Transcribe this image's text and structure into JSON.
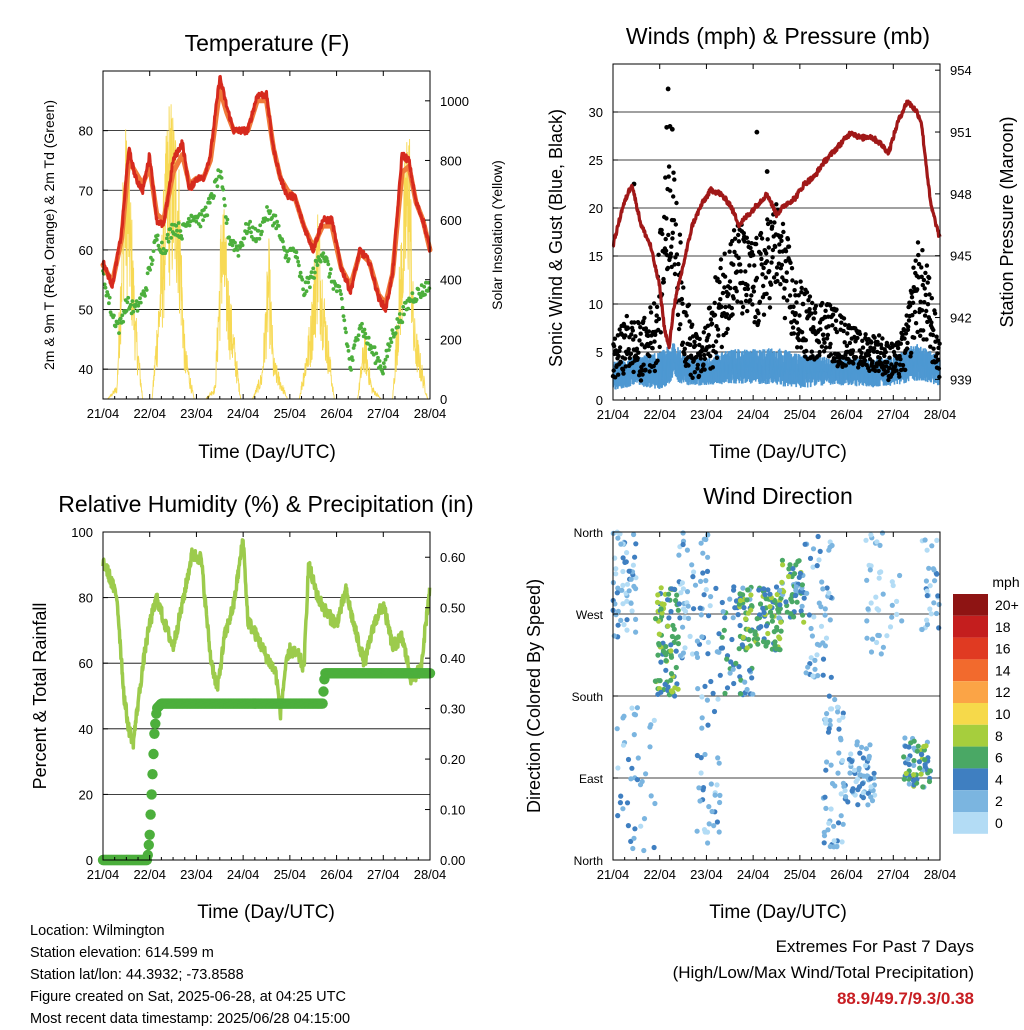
{
  "x_ticks": [
    "21/04",
    "22/04",
    "23/04",
    "24/04",
    "25/04",
    "26/04",
    "27/04",
    "28/04"
  ],
  "info": {
    "location": "Location: Wilmington",
    "elevation": "Station elevation: 614.599 m",
    "latlon": "Station lat/lon: 44.3932; -73.8588",
    "created": "Figure created on Sat, 2025-06-28, at 04:25 UTC",
    "recent": "Most recent data timestamp: 2025/06/28 04:15:00"
  },
  "extremes": {
    "title": "Extremes For Past 7 Days",
    "subtitle": "(High/Low/Max Wind/Total Precipitation)",
    "values": "88.9/49.7/9.3/0.38",
    "value_color": "#c81e23"
  },
  "colors": {
    "temp_2m": "#d62a1e",
    "temp_9m": "#f07a3a",
    "dewpoint": "#4caf3c",
    "insolation": "#f7d954",
    "gust": "#000000",
    "wind": "#4e98d2",
    "pressure": "#a01818",
    "rh": "#9ccb4c",
    "precip": "#4caf3c"
  },
  "chart_data": [
    {
      "type": "line",
      "title": "Temperature (F)",
      "xlabel": "Time (Day/UTC)",
      "ylabel": "2m & 9m T (Red, Orange) & 2m Td (Green)",
      "y2label": "Solar Insolation (Yellow)",
      "ylim": [
        35,
        90
      ],
      "y2lim": [
        0,
        1100
      ],
      "yticks": [
        40,
        50,
        60,
        70,
        80
      ],
      "y2ticks": [
        0,
        200,
        400,
        600,
        800,
        1000
      ],
      "x_days": [
        0,
        7
      ],
      "grid": true,
      "series": [
        {
          "key": "temp_2m",
          "x": [
            0,
            0.2,
            0.4,
            0.55,
            0.7,
            0.85,
            1.0,
            1.15,
            1.3,
            1.5,
            1.7,
            1.85,
            2.0,
            2.15,
            2.3,
            2.5,
            2.65,
            2.8,
            2.95,
            3.1,
            3.3,
            3.5,
            3.65,
            3.8,
            3.95,
            4.1,
            4.3,
            4.5,
            4.7,
            4.9,
            5.1,
            5.3,
            5.5,
            5.7,
            5.9,
            6.05,
            6.2,
            6.4,
            6.55,
            6.7,
            6.85,
            7.0
          ],
          "y": [
            58,
            54,
            63,
            77,
            72,
            70,
            76,
            65,
            64,
            75,
            78,
            70,
            72,
            72,
            76,
            89,
            84,
            80,
            80,
            80,
            86,
            86,
            77,
            72,
            69,
            69,
            64,
            60,
            65,
            65,
            57,
            53,
            60,
            58,
            52,
            50,
            56,
            76,
            75,
            68,
            65,
            60
          ]
        },
        {
          "key": "temp_9m",
          "x": [
            0,
            0.2,
            0.4,
            0.55,
            0.7,
            0.85,
            1.0,
            1.15,
            1.3,
            1.5,
            1.7,
            1.85,
            2.0,
            2.15,
            2.3,
            2.5,
            2.65,
            2.8,
            2.95,
            3.1,
            3.3,
            3.5,
            3.65,
            3.8,
            3.95,
            4.1,
            4.3,
            4.5,
            4.7,
            4.9,
            5.1,
            5.3,
            5.5,
            5.7,
            5.9,
            6.05,
            6.2,
            6.4,
            6.55,
            6.7,
            6.85,
            7.0
          ],
          "y": [
            57.5,
            54.5,
            62,
            75,
            73,
            71,
            74,
            66,
            65,
            73,
            76,
            71,
            72,
            72,
            75,
            87,
            83,
            80,
            80,
            80,
            85,
            85,
            77,
            72,
            70,
            69,
            64,
            60.5,
            64,
            64,
            57,
            54,
            59.5,
            58,
            52.5,
            51,
            56,
            73,
            74,
            68,
            65,
            60
          ]
        },
        {
          "key": "dewpoint",
          "x": [
            0,
            0.2,
            0.35,
            0.5,
            0.7,
            0.9,
            1.0,
            1.15,
            1.3,
            1.5,
            1.7,
            1.9,
            2.1,
            2.3,
            2.5,
            2.7,
            2.9,
            3.1,
            3.3,
            3.5,
            3.7,
            3.9,
            4.1,
            4.3,
            4.5,
            4.7,
            4.9,
            5.1,
            5.3,
            5.5,
            5.7,
            5.85,
            6.0,
            6.2,
            6.4,
            6.6,
            6.8,
            7.0
          ],
          "y": [
            56,
            49,
            47,
            51,
            50,
            53,
            57,
            62,
            60,
            64,
            63,
            66,
            65,
            68,
            73,
            62,
            60,
            64,
            62,
            66,
            65,
            59,
            60,
            53,
            56,
            60,
            55,
            52,
            40,
            48,
            44,
            42,
            40,
            46,
            49,
            52,
            53,
            54
          ]
        },
        {
          "key": "insolation",
          "x": [
            0,
            0.1,
            0.3,
            0.45,
            0.55,
            0.7,
            0.85,
            1.05,
            1.2,
            1.4,
            1.6,
            1.75,
            1.95,
            2.2,
            2.4,
            2.55,
            2.7,
            2.95,
            3.2,
            3.4,
            3.55,
            3.65,
            3.95,
            4.2,
            4.45,
            4.6,
            4.75,
            4.95,
            5.2,
            5.45,
            5.6,
            5.75,
            5.95,
            6.2,
            6.45,
            6.55,
            6.65,
            6.95,
            7.0
          ],
          "y": [
            0,
            0,
            50,
            950,
            900,
            300,
            0,
            0,
            400,
            1050,
            950,
            200,
            0,
            0,
            50,
            750,
            400,
            0,
            0,
            100,
            550,
            150,
            0,
            0,
            300,
            700,
            350,
            0,
            0,
            0,
            250,
            50,
            0,
            0,
            800,
            1050,
            300,
            0,
            0
          ]
        }
      ]
    },
    {
      "type": "scatter",
      "title": "Winds (mph) & Pressure (mb)",
      "xlabel": "Time (Day/UTC)",
      "ylabel": "Sonic Wind & Gust (Blue, Black)",
      "y2label": "Station Pressure (Maroon)",
      "ylim": [
        0,
        35
      ],
      "y2lim": [
        938.0,
        954.3
      ],
      "yticks": [
        0,
        5,
        10,
        15,
        20,
        25,
        30
      ],
      "y2ticks": [
        939,
        942,
        945,
        948,
        951,
        954
      ],
      "x_days": [
        0,
        7
      ],
      "grid": true,
      "gust_envelope": {
        "x": [
          0,
          0.3,
          0.6,
          0.9,
          1.0,
          1.1,
          1.2,
          1.3,
          1.5,
          1.7,
          1.9,
          2.1,
          2.3,
          2.5,
          2.7,
          2.9,
          3.1,
          3.3,
          3.5,
          3.7,
          3.9,
          4.1,
          4.3,
          4.5,
          4.7,
          4.9,
          5.1,
          5.3,
          5.5,
          5.7,
          5.9,
          6.1,
          6.3,
          6.5,
          6.7,
          6.9,
          7.0
        ],
        "y": [
          4,
          6,
          5,
          7,
          11,
          17,
          20,
          18,
          9,
          5,
          4,
          7,
          10,
          13,
          14,
          12,
          12,
          14,
          16,
          13,
          9,
          8,
          7,
          8,
          7,
          6,
          6,
          5,
          5,
          5,
          4,
          4,
          6,
          12,
          10,
          6,
          4
        ],
        "spread": [
          2,
          3,
          3,
          4,
          6,
          6,
          6,
          6,
          5,
          3,
          2,
          4,
          5,
          5,
          5,
          5,
          5,
          5,
          5,
          5,
          4,
          4,
          3,
          3,
          3,
          3,
          2,
          2,
          2,
          2,
          2,
          2,
          3,
          5,
          5,
          3,
          2
        ]
      },
      "gust_outliers": [
        {
          "x": 1.18,
          "y": 32.4
        },
        {
          "x": 1.15,
          "y": 28.4
        },
        {
          "x": 1.22,
          "y": 28.5
        },
        {
          "x": 1.27,
          "y": 28.2
        },
        {
          "x": 3.08,
          "y": 27.9
        },
        {
          "x": 3.3,
          "y": 23.8
        },
        {
          "x": 0.45,
          "y": 22.5
        }
      ],
      "wind_envelope": {
        "x": [
          0,
          0.5,
          1.0,
          1.3,
          1.6,
          2.0,
          2.5,
          3.0,
          3.5,
          4.0,
          4.5,
          5.0,
          5.5,
          6.0,
          6.5,
          7.0
        ],
        "y": [
          2.5,
          3,
          3,
          4,
          3,
          3,
          3.5,
          3.5,
          3.5,
          3,
          3,
          3,
          2.8,
          3,
          4,
          3
        ],
        "spread": [
          1.5,
          1.5,
          2,
          2,
          1.5,
          1.5,
          1.8,
          1.8,
          2,
          1.8,
          1.5,
          1.5,
          1.5,
          1.5,
          2,
          1.5
        ]
      },
      "pressure": {
        "x": [
          0,
          0.2,
          0.4,
          0.6,
          0.8,
          1.0,
          1.1,
          1.2,
          1.3,
          1.5,
          1.7,
          1.9,
          2.1,
          2.3,
          2.5,
          2.7,
          2.9,
          3.1,
          3.3,
          3.5,
          3.7,
          3.9,
          4.1,
          4.3,
          4.5,
          4.7,
          4.9,
          5.1,
          5.3,
          5.5,
          5.7,
          5.9,
          6.1,
          6.3,
          6.5,
          6.6,
          6.8,
          7.0
        ],
        "y": [
          945.5,
          947.3,
          948.5,
          946.5,
          945.5,
          943.5,
          941.5,
          940.5,
          942.5,
          944.5,
          946.5,
          947.5,
          948.2,
          948.0,
          947.5,
          946.5,
          947.0,
          947.5,
          948.0,
          947.0,
          947.5,
          947.8,
          948.5,
          948.8,
          949.5,
          950.0,
          950.5,
          951.0,
          950.7,
          950.8,
          950.5,
          950.0,
          951.5,
          952.5,
          952.0,
          951.5,
          947.5,
          945.8
        ]
      }
    },
    {
      "type": "line",
      "title": "Relative Humidity (%) & Precipitation (in)",
      "xlabel": "Time (Day/UTC)",
      "ylabel": "Percent & Total Rainfall",
      "ylim": [
        0,
        100
      ],
      "y2lim": [
        0,
        0.65
      ],
      "yticks": [
        0,
        20,
        40,
        60,
        80,
        100
      ],
      "y2ticks": [
        0.0,
        0.1,
        0.2,
        0.3,
        0.4,
        0.5,
        0.6
      ],
      "y2ticklabels": [
        "0.00",
        "0.10",
        "0.20",
        "0.30",
        "0.40",
        "0.50",
        "0.60"
      ],
      "x_days": [
        0,
        7
      ],
      "grid": true,
      "series": [
        {
          "key": "rh",
          "x": [
            0,
            0.1,
            0.3,
            0.45,
            0.55,
            0.65,
            0.75,
            0.9,
            1.0,
            1.15,
            1.3,
            1.5,
            1.7,
            1.9,
            2.1,
            2.3,
            2.45,
            2.6,
            2.8,
            3.0,
            3.1,
            3.3,
            3.5,
            3.7,
            3.8,
            3.9,
            4.0,
            4.1,
            4.2,
            4.3,
            4.4,
            4.6,
            4.8,
            5.0,
            5.2,
            5.4,
            5.6,
            5.8,
            6.0,
            6.2,
            6.4,
            6.6,
            6.8,
            7.0
          ],
          "y": [
            91,
            88,
            80,
            50,
            40,
            36,
            48,
            64,
            72,
            80,
            73,
            65,
            78,
            93,
            92,
            62,
            52,
            68,
            78,
            98,
            73,
            68,
            62,
            57,
            45,
            58,
            64,
            63,
            62,
            58,
            90,
            80,
            75,
            72,
            82,
            70,
            60,
            72,
            78,
            65,
            68,
            55,
            58,
            84
          ]
        },
        {
          "key": "precip",
          "x": [
            0,
            0.5,
            0.95,
            1.0,
            1.05,
            1.1,
            1.15,
            1.25,
            1.4,
            1.8,
            2.5,
            3.0,
            3.5,
            4.0,
            4.7,
            4.75,
            5.0,
            5.5,
            6.0,
            6.5,
            7.0
          ],
          "y": [
            0,
            0,
            0,
            0.05,
            0.15,
            0.25,
            0.3,
            0.31,
            0.31,
            0.31,
            0.31,
            0.31,
            0.31,
            0.31,
            0.31,
            0.37,
            0.37,
            0.37,
            0.37,
            0.37,
            0.37
          ]
        }
      ]
    },
    {
      "type": "scatter",
      "title": "Wind Direction",
      "xlabel": "Time (Day/UTC)",
      "ylabel": "Direction (Colored By Speed)",
      "ylim": [
        0,
        360
      ],
      "yticks": [
        0,
        90,
        180,
        270,
        360
      ],
      "yticklabels": [
        "North",
        "East",
        "South",
        "West",
        "North"
      ],
      "x_days": [
        0,
        7
      ],
      "grid": true,
      "legend": {
        "title": "mph",
        "position": "right",
        "labels": [
          "20+",
          "18",
          "16",
          "14",
          "12",
          "10",
          "8",
          "6",
          "4",
          "2",
          "0"
        ],
        "colors": [
          "#8e1413",
          "#c41e1e",
          "#e03a22",
          "#f26a2d",
          "#fba446",
          "#f6d94a",
          "#a6ce3d",
          "#4aa865",
          "#3f7fc1",
          "#7bb5e0",
          "#b3dcf5"
        ]
      },
      "clusters": [
        {
          "x0": 0.0,
          "x1": 0.5,
          "y0": 240,
          "y1": 360,
          "n": 60,
          "s0": 0,
          "s1": 4
        },
        {
          "x0": 0.0,
          "x1": 0.9,
          "y0": 10,
          "y1": 170,
          "n": 40,
          "s0": 0,
          "s1": 4
        },
        {
          "x0": 0.9,
          "x1": 1.4,
          "y0": 180,
          "y1": 300,
          "n": 90,
          "s0": 4,
          "s1": 8
        },
        {
          "x0": 1.4,
          "x1": 2.1,
          "y0": 220,
          "y1": 360,
          "n": 60,
          "s0": 0,
          "s1": 4
        },
        {
          "x0": 1.8,
          "x1": 2.3,
          "y0": 10,
          "y1": 200,
          "n": 40,
          "s0": 0,
          "s1": 4
        },
        {
          "x0": 2.2,
          "x1": 3.0,
          "y0": 180,
          "y1": 300,
          "n": 60,
          "s0": 2,
          "s1": 6
        },
        {
          "x0": 2.7,
          "x1": 3.6,
          "y0": 230,
          "y1": 300,
          "n": 100,
          "s0": 4,
          "s1": 8
        },
        {
          "x0": 3.5,
          "x1": 4.1,
          "y0": 260,
          "y1": 330,
          "n": 60,
          "s0": 2,
          "s1": 8
        },
        {
          "x0": 4.1,
          "x1": 4.7,
          "y0": 200,
          "y1": 360,
          "n": 50,
          "s0": 0,
          "s1": 4
        },
        {
          "x0": 4.5,
          "x1": 5.0,
          "y0": 0,
          "y1": 180,
          "n": 60,
          "s0": 0,
          "s1": 4
        },
        {
          "x0": 5.0,
          "x1": 5.6,
          "y0": 60,
          "y1": 130,
          "n": 60,
          "s0": 0,
          "s1": 4
        },
        {
          "x0": 5.4,
          "x1": 6.2,
          "y0": 220,
          "y1": 360,
          "n": 40,
          "s0": 0,
          "s1": 2
        },
        {
          "x0": 6.2,
          "x1": 6.8,
          "y0": 80,
          "y1": 140,
          "n": 60,
          "s0": 2,
          "s1": 8
        },
        {
          "x0": 6.6,
          "x1": 7.0,
          "y0": 250,
          "y1": 360,
          "n": 30,
          "s0": 0,
          "s1": 4
        }
      ]
    }
  ]
}
